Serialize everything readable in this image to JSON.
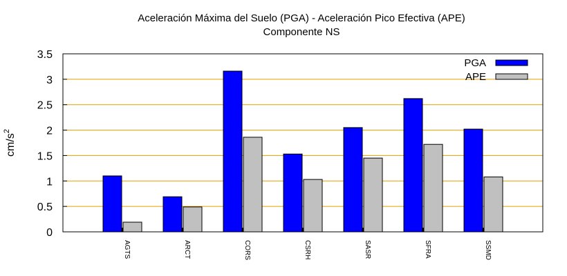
{
  "chart_data": {
    "type": "bar",
    "title": "Aceleración Máxima del Suelo (PGA) -  Aceleración Pico Efectiva (APE)",
    "subtitle": "Componente NS",
    "ylabel": "cm/s",
    "ylabel_sup": "2",
    "xlabel": "",
    "ylim": [
      0,
      3.5
    ],
    "yticks": [
      "0",
      "0.5",
      "1",
      "1.5",
      "2",
      "2.5",
      "3",
      "3.5"
    ],
    "grid": true,
    "legend_position": "top-right",
    "categories": [
      "AGTS",
      "ARCT",
      "CORS",
      "CSRH",
      "SASR",
      "SFRA",
      "SSMD"
    ],
    "series": [
      {
        "name": "PGA",
        "color": "#0000ff",
        "values": [
          1.1,
          0.69,
          3.16,
          1.53,
          2.05,
          2.62,
          2.02
        ]
      },
      {
        "name": "APE",
        "color": "#c0c0c0",
        "values": [
          0.19,
          0.49,
          1.86,
          1.03,
          1.45,
          1.72,
          1.08
        ]
      }
    ],
    "grid_color": "#e0a000"
  }
}
